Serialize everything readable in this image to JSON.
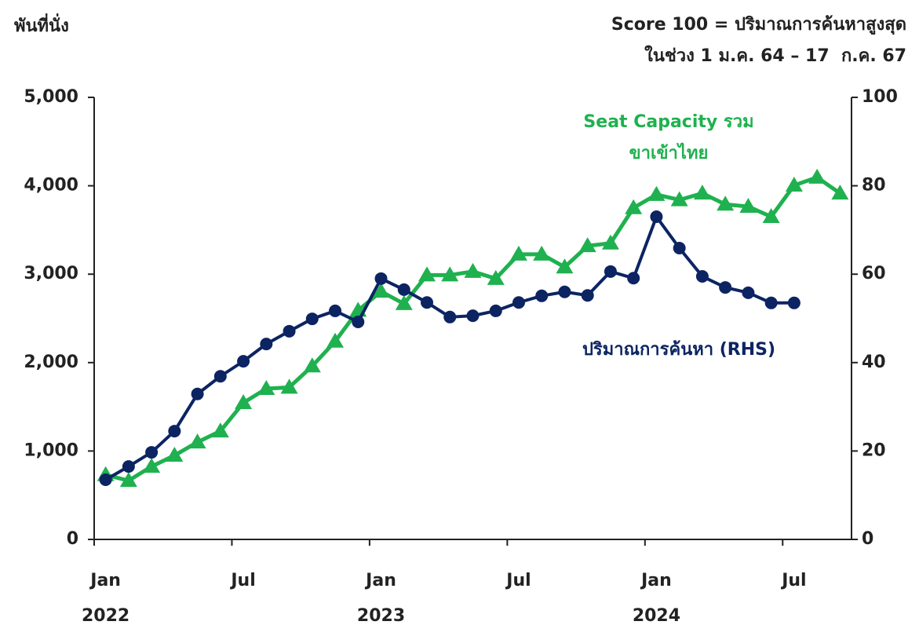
{
  "chart_data": {
    "type": "line",
    "left_axis_label": "พันที่นั่ง",
    "title_lines": [
      "Score 100 = ปริมาณการค้นหาสูงสุด",
      "ในช่วง 1 ม.ค. 64 – 17  ก.ค. 67"
    ],
    "categories": [
      "Jan",
      null,
      null,
      null,
      null,
      null,
      "Jul",
      null,
      null,
      null,
      null,
      null,
      "Jan",
      null,
      null,
      null,
      null,
      null,
      "Jul",
      null,
      null,
      null,
      null,
      null,
      "Jan",
      null,
      null,
      null,
      null,
      null,
      "Jul",
      null,
      null
    ],
    "category_years": [
      "2022",
      null,
      null,
      null,
      null,
      null,
      null,
      null,
      null,
      null,
      null,
      null,
      "2023",
      null,
      null,
      null,
      null,
      null,
      null,
      null,
      null,
      null,
      null,
      null,
      "2024",
      null,
      null,
      null,
      null,
      null,
      null,
      null,
      null
    ],
    "ylim": [
      0,
      5000
    ],
    "yticks": [
      0,
      {
        "value": 1000,
        "label": "1,000"
      },
      {
        "value": 2000,
        "label": "2,000"
      },
      {
        "value": 3000,
        "label": "3,000"
      },
      {
        "value": 4000,
        "label": "4,000"
      },
      {
        "value": 5000,
        "label": "5,000"
      }
    ],
    "y2lim": [
      0,
      100
    ],
    "y2ticks": [
      0,
      20,
      40,
      60,
      80,
      100
    ],
    "series": [
      {
        "name": [
          "Seat Capacity รวม",
          "ขาเข้าไทย"
        ],
        "color": "#1fb14f",
        "marker": "triangle",
        "values": [
          730,
          665,
          825,
          950,
          1100,
          1225,
          1545,
          1705,
          1720,
          1960,
          2240,
          2590,
          2805,
          2665,
          2990,
          2990,
          3030,
          2950,
          3225,
          3225,
          3080,
          3320,
          3350,
          3750,
          3900,
          3840,
          3915,
          3790,
          3765,
          3650,
          4005,
          4095,
          3915
        ]
      },
      {
        "name": "ปริมาณการค้นหา (RHS)",
        "color": "#0c2462",
        "marker": "circle",
        "axis": "y2",
        "values": [
          13.5,
          16.5,
          19.7,
          24.5,
          32.9,
          36.9,
          40.3,
          44.2,
          47.1,
          49.9,
          51.7,
          49.2,
          59.0,
          56.5,
          53.6,
          50.3,
          50.6,
          51.7,
          53.6,
          55.1,
          56.0,
          55.2,
          60.6,
          59.1,
          73.0,
          65.9,
          59.5,
          57.0,
          55.8,
          53.5,
          53.5,
          null,
          null
        ]
      }
    ]
  }
}
